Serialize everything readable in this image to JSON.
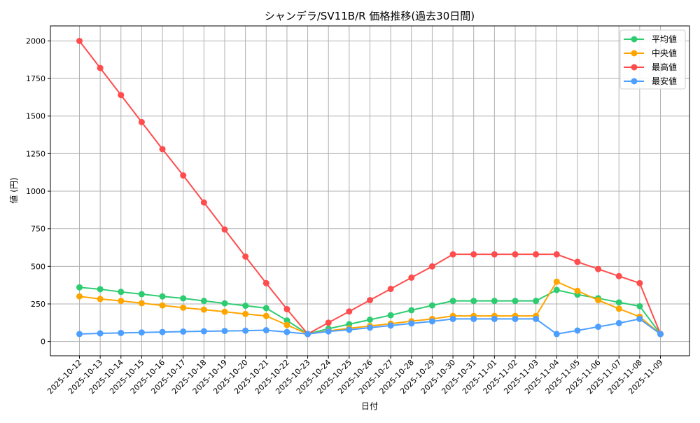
{
  "chart_data": {
    "type": "line",
    "title": "シャンデラ/SV11B/R 価格推移(過去30日間)",
    "xlabel": "日付",
    "ylabel": "値 (円)",
    "ylim": [
      -95,
      2100
    ],
    "yticks": [
      0,
      250,
      500,
      750,
      1000,
      1250,
      1500,
      1750,
      2000
    ],
    "grid": true,
    "legend_position": "top-right",
    "x": [
      "2025-10-12",
      "2025-10-13",
      "2025-10-14",
      "2025-10-15",
      "2025-10-16",
      "2025-10-17",
      "2025-10-18",
      "2025-10-19",
      "2025-10-20",
      "2025-10-21",
      "2025-10-22",
      "2025-10-23",
      "2025-10-24",
      "2025-10-25",
      "2025-10-26",
      "2025-10-27",
      "2025-10-28",
      "2025-10-29",
      "2025-10-30",
      "2025-10-31",
      "2025-11-01",
      "2025-11-02",
      "2025-11-03",
      "2025-11-04",
      "2025-11-05",
      "2025-11-06",
      "2025-11-07",
      "2025-11-08",
      "2025-11-09"
    ],
    "series": [
      {
        "name": "平均値",
        "color": "#2ecc71",
        "values": [
          360,
          348,
          330,
          315,
          300,
          287,
          270,
          254,
          238,
          222,
          140,
          50,
          85,
          115,
          145,
          175,
          208,
          240,
          270,
          270,
          270,
          270,
          270,
          343,
          312,
          288,
          260,
          235,
          50
        ]
      },
      {
        "name": "中央値",
        "color": "#ffa500",
        "values": [
          300,
          283,
          270,
          255,
          240,
          225,
          212,
          198,
          183,
          170,
          110,
          50,
          70,
          88,
          103,
          118,
          135,
          150,
          170,
          170,
          170,
          170,
          170,
          398,
          337,
          275,
          218,
          165,
          50
        ]
      },
      {
        "name": "最高値",
        "color": "#ff4d4d",
        "values": [
          2000,
          1820,
          1640,
          1460,
          1280,
          1105,
          925,
          745,
          565,
          388,
          215,
          50,
          125,
          200,
          275,
          350,
          425,
          500,
          580,
          580,
          580,
          580,
          580,
          580,
          530,
          482,
          435,
          388,
          50
        ]
      },
      {
        "name": "最安値",
        "color": "#4d9fff",
        "values": [
          50,
          54,
          57,
          60,
          63,
          66,
          68,
          70,
          72,
          75,
          63,
          50,
          67,
          78,
          92,
          106,
          120,
          134,
          150,
          150,
          150,
          150,
          150,
          50,
          73,
          98,
          122,
          150,
          50
        ]
      }
    ]
  }
}
